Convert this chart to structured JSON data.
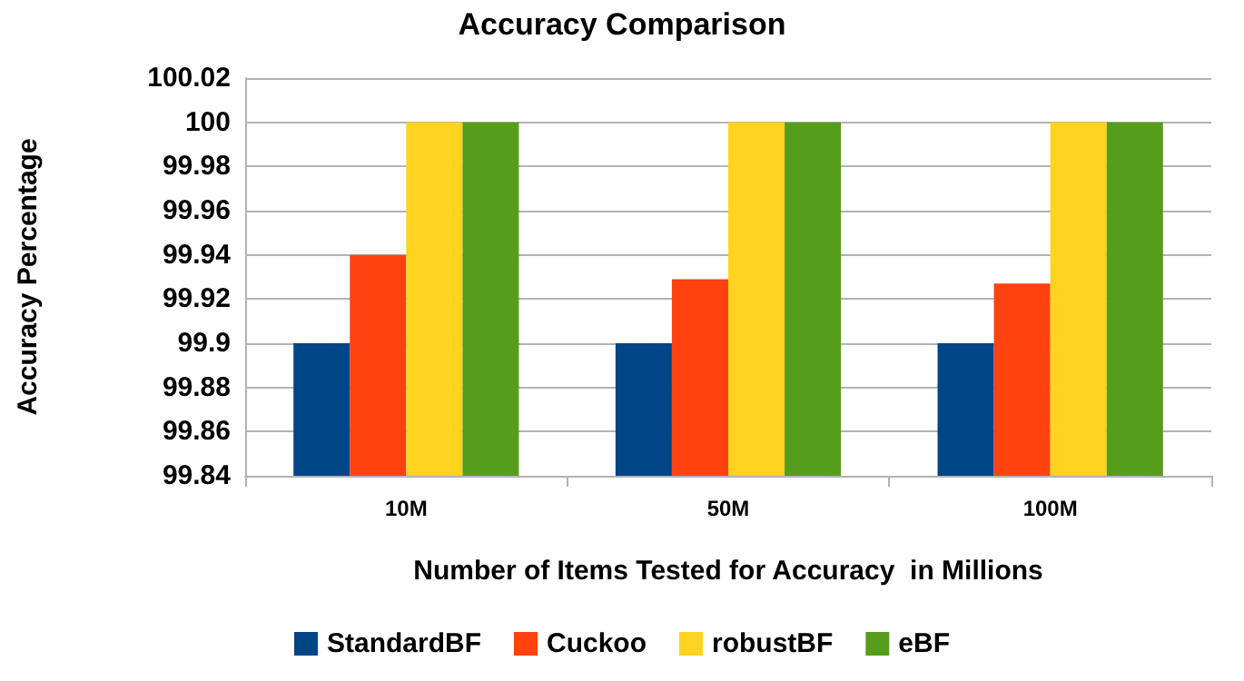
{
  "chart_data": {
    "type": "bar",
    "title": "Accuracy Comparison",
    "xlabel": "Number of Items Tested for Accuracy  in Millions",
    "ylabel": "Accuracy Percentage",
    "categories": [
      "10M",
      "50M",
      "100M"
    ],
    "series": [
      {
        "name": "StandardBF",
        "color": "#004586",
        "values": [
          99.9,
          99.9,
          99.9
        ]
      },
      {
        "name": "Cuckoo",
        "color": "#ff420e",
        "values": [
          99.94,
          99.929,
          99.927
        ]
      },
      {
        "name": "robustBF",
        "color": "#ffd320",
        "values": [
          100,
          100,
          100
        ]
      },
      {
        "name": "eBF",
        "color": "#579d1c",
        "values": [
          100,
          100,
          100
        ]
      }
    ],
    "ylim": [
      99.84,
      100.02
    ],
    "yticks": [
      99.84,
      99.86,
      99.88,
      99.9,
      99.92,
      99.94,
      99.96,
      99.98,
      100,
      100.02
    ],
    "grid": "y",
    "legend": "bottom"
  }
}
